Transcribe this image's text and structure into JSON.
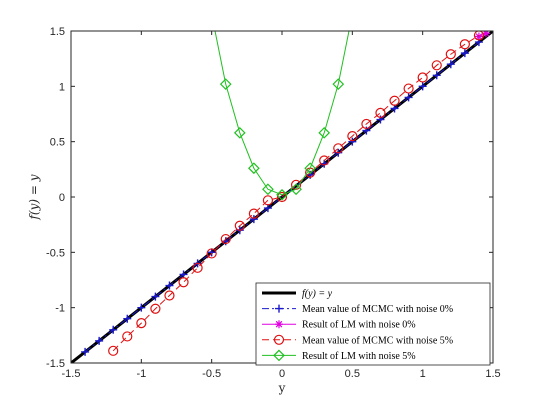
{
  "chart_data": {
    "type": "line",
    "title": "",
    "xlabel": "y",
    "ylabel": "f(y) = y",
    "xlim": [
      -1.5,
      1.5
    ],
    "ylim": [
      -1.5,
      1.5
    ],
    "xticks": [
      -1.5,
      -1,
      -0.5,
      0,
      0.5,
      1,
      1.5
    ],
    "yticks": [
      -1.5,
      -1,
      -0.5,
      0,
      0.5,
      1,
      1.5
    ],
    "xtick_labels": [
      "-1.5",
      "-1",
      "-0.5",
      "0",
      "0.5",
      "1",
      "1.5"
    ],
    "ytick_labels": [
      "-1.5",
      "-1",
      "-0.5",
      "0",
      "0.5",
      "1",
      "1.5"
    ],
    "grid": false,
    "legend_position": "bottom-right",
    "series": [
      {
        "name": "f(y) = y",
        "color": "#000000",
        "style": "solid",
        "marker": "none",
        "x": [
          -1.5,
          1.5
        ],
        "y": [
          -1.5,
          1.5
        ]
      },
      {
        "name": "Mean value of MCMC with noise 0%",
        "color": "#1a1acc",
        "style": "dashdot",
        "marker": "plus",
        "x": [
          -1.4,
          -1.3,
          -1.2,
          -1.1,
          -1.0,
          -0.9,
          -0.8,
          -0.7,
          -0.6,
          -0.5,
          -0.4,
          -0.3,
          -0.2,
          -0.1,
          0.2,
          0.3,
          0.4,
          0.5,
          0.6,
          0.7,
          0.8,
          0.9,
          1.0,
          1.1,
          1.2,
          1.3,
          1.4
        ],
        "y": [
          -1.4,
          -1.3,
          -1.2,
          -1.1,
          -1.0,
          -0.9,
          -0.8,
          -0.7,
          -0.6,
          -0.5,
          -0.4,
          -0.3,
          -0.2,
          -0.1,
          0.2,
          0.3,
          0.4,
          0.5,
          0.6,
          0.7,
          0.8,
          0.9,
          1.0,
          1.1,
          1.2,
          1.3,
          1.4
        ]
      },
      {
        "name": "Result of LM with noise 0%",
        "color": "#e000e0",
        "style": "solid",
        "marker": "star",
        "x": [
          1.4,
          1.45
        ],
        "y": [
          1.45,
          1.48
        ]
      },
      {
        "name": "Mean value of MCMC with noise 5%",
        "color": "#e01010",
        "style": "dashed",
        "marker": "circle",
        "x": [
          -1.2,
          -1.1,
          -1.0,
          -0.9,
          -0.8,
          -0.7,
          -0.6,
          -0.5,
          -0.4,
          -0.3,
          -0.2,
          -0.1,
          0.0,
          0.1,
          0.2,
          0.3,
          0.4,
          0.5,
          0.6,
          0.7,
          0.8,
          0.9,
          1.0,
          1.1,
          1.2,
          1.3,
          1.4
        ],
        "y": [
          -1.39,
          -1.26,
          -1.14,
          -1.01,
          -0.89,
          -0.77,
          -0.64,
          -0.51,
          -0.38,
          -0.26,
          -0.15,
          -0.03,
          0.0,
          0.11,
          0.22,
          0.33,
          0.44,
          0.55,
          0.66,
          0.76,
          0.87,
          0.98,
          1.08,
          1.19,
          1.29,
          1.38,
          1.46
        ]
      },
      {
        "name": "Result of LM with noise 5%",
        "color": "#20c020",
        "style": "solid",
        "marker": "diamond",
        "x": [
          -0.5,
          -0.4,
          -0.3,
          -0.2,
          -0.1,
          0.0,
          0.1,
          0.2,
          0.3,
          0.4,
          0.5
        ],
        "y": [
          1.65,
          1.02,
          0.58,
          0.26,
          0.07,
          0.02,
          0.07,
          0.26,
          0.58,
          1.02,
          1.65
        ]
      }
    ]
  }
}
